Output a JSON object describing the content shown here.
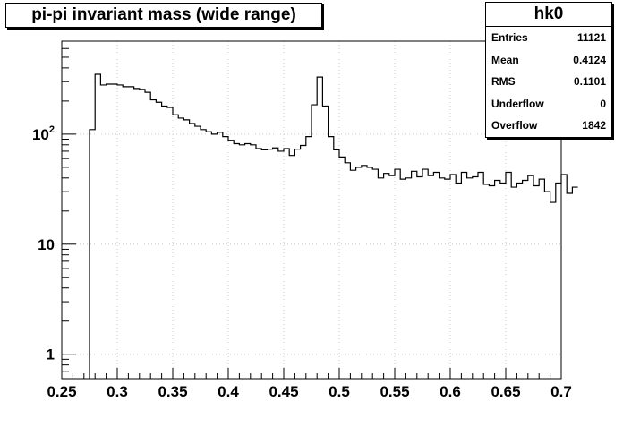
{
  "chart_data": {
    "type": "histogram",
    "title": "pi-pi invariant mass (wide range)",
    "xlabel": "",
    "ylabel": "",
    "yscale": "log",
    "grid": true,
    "xlim": [
      0.25,
      0.7
    ],
    "ylim": [
      0.6,
      700
    ],
    "x_ticks": [
      "0.25",
      "0.3",
      "0.35",
      "0.4",
      "0.45",
      "0.5",
      "0.55",
      "0.6",
      "0.65",
      "0.7"
    ],
    "y_ticks": [
      {
        "value": 1,
        "label": "1"
      },
      {
        "value": 10,
        "label": "10"
      },
      {
        "value": 100,
        "base": "10",
        "exp": "2"
      }
    ],
    "bin_width": 0.005,
    "x_start": 0.275,
    "values": [
      110,
      350,
      280,
      285,
      285,
      280,
      270,
      270,
      260,
      255,
      240,
      205,
      195,
      180,
      175,
      150,
      140,
      135,
      125,
      118,
      110,
      105,
      100,
      104,
      95,
      88,
      82,
      80,
      82,
      80,
      74,
      72,
      73,
      75,
      70,
      74,
      64,
      73,
      79,
      95,
      185,
      330,
      180,
      95,
      72,
      62,
      55,
      47,
      50,
      52,
      50,
      48,
      40,
      44,
      42,
      48,
      39,
      40,
      46,
      41,
      48,
      42,
      45,
      40,
      39,
      43,
      36,
      45,
      40,
      41,
      45,
      35,
      34,
      38,
      36,
      45,
      33,
      36,
      38,
      42,
      34,
      39,
      30,
      24,
      36,
      43,
      29,
      33
    ],
    "stats": {
      "name": "hk0",
      "rows": [
        {
          "label": "Entries",
          "value": "11121"
        },
        {
          "label": "Mean",
          "value": "0.4124"
        },
        {
          "label": "RMS",
          "value": "0.1101"
        },
        {
          "label": "Underflow",
          "value": "0"
        },
        {
          "label": "Overflow",
          "value": "1842"
        }
      ]
    },
    "colors": {
      "line": "#000000",
      "grid": "#cccccc",
      "background": "#ffffff"
    }
  }
}
